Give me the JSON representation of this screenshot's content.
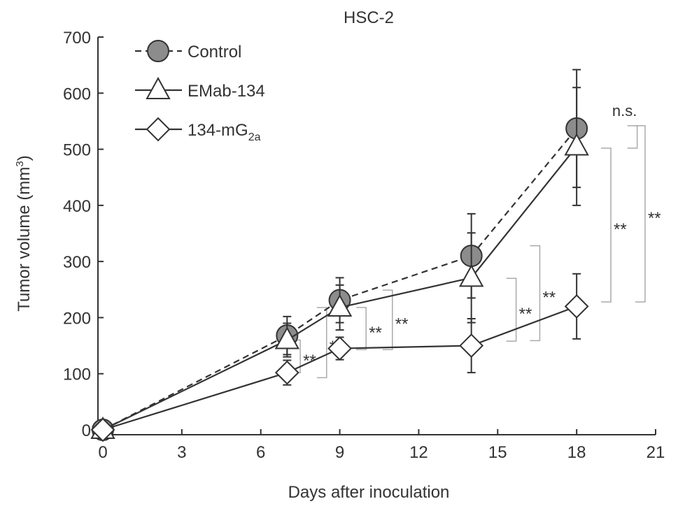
{
  "chart_data": {
    "type": "line",
    "title": "HSC-2",
    "xlabel": "Days after inoculation",
    "ylabel": "Tumor volume (mm",
    "ylabel_sup": "3",
    "ylabel_end": ")",
    "xlim": [
      0,
      21
    ],
    "ylim": [
      0,
      700
    ],
    "xticks": [
      0,
      3,
      6,
      9,
      12,
      15,
      18,
      21
    ],
    "yticks": [
      0,
      100,
      200,
      300,
      400,
      500,
      600,
      700
    ],
    "legend_position": "top-left",
    "x": [
      0,
      7,
      9,
      14,
      18
    ],
    "series": [
      {
        "name": "Control",
        "marker": "circle",
        "dash": true,
        "values": [
          0,
          168,
          231,
          310,
          537
        ],
        "yerr": [
          0,
          34,
          40,
          75,
          105
        ]
      },
      {
        "name": "EMab-134",
        "marker": "triangle",
        "dash": false,
        "values": [
          0,
          160,
          218,
          271,
          505
        ],
        "yerr": [
          0,
          30,
          40,
          80,
          105
        ]
      },
      {
        "name": "134-mG",
        "name_sub": "2a",
        "marker": "diamond",
        "dash": false,
        "values": [
          0,
          102,
          145,
          150,
          220
        ],
        "yerr": [
          0,
          22,
          20,
          48,
          58
        ]
      }
    ],
    "annotations": [
      {
        "x": 7.5,
        "y1": 102,
        "y2": 160,
        "label": "**"
      },
      {
        "x": 8.5,
        "y1": 93,
        "y2": 218,
        "label": "**"
      },
      {
        "x": 10.0,
        "y1": 143,
        "y2": 218,
        "label": "**"
      },
      {
        "x": 11.0,
        "y1": 143,
        "y2": 249,
        "label": "**"
      },
      {
        "x": 15.7,
        "y1": 158,
        "y2": 270,
        "label": "**"
      },
      {
        "x": 16.6,
        "y1": 159,
        "y2": 328,
        "label": "**"
      },
      {
        "x": 19.3,
        "y1": 228,
        "y2": 502,
        "label": "**"
      },
      {
        "x": 20.3,
        "y1": 502,
        "y2": 542,
        "label": "n.s."
      },
      {
        "x": 20.6,
        "y1": 228,
        "y2": 542,
        "label": "**"
      }
    ],
    "colors": {
      "line": "#333333",
      "control_fill": "#8c8c8c",
      "open_fill": "#ffffff",
      "bracket": "#aaaaaa"
    }
  }
}
